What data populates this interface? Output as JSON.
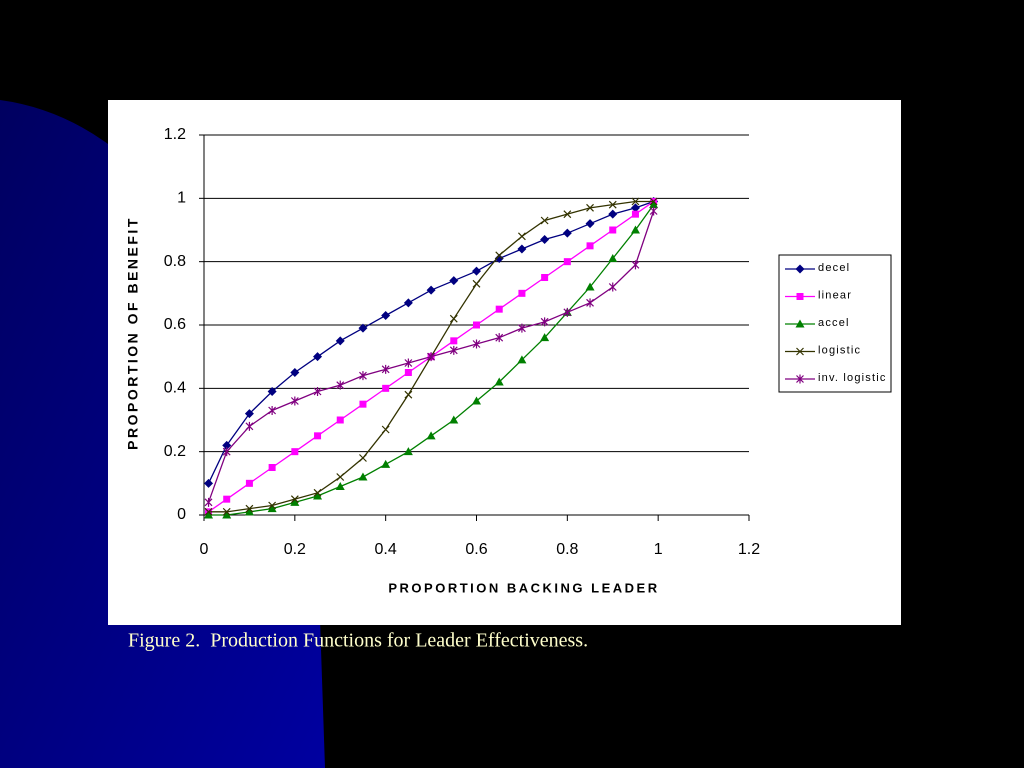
{
  "chart_data": {
    "type": "line",
    "caption": "Figure 2.  Production Functions for Leader Effectiveness.",
    "xlabel": "PROPORTION BACKING LEADER",
    "ylabel": "PROPORTION OF BENEFIT",
    "x": [
      0.01,
      0.05,
      0.1,
      0.15,
      0.2,
      0.25,
      0.3,
      0.35,
      0.4,
      0.45,
      0.5,
      0.55,
      0.6,
      0.65,
      0.7,
      0.75,
      0.8,
      0.85,
      0.9,
      0.95,
      0.99
    ],
    "series": [
      {
        "name": "decel",
        "color": "#000080",
        "marker": "diamond",
        "values": [
          0.1,
          0.22,
          0.32,
          0.39,
          0.45,
          0.5,
          0.55,
          0.59,
          0.63,
          0.67,
          0.71,
          0.74,
          0.77,
          0.81,
          0.84,
          0.87,
          0.89,
          0.92,
          0.95,
          0.97,
          0.99
        ]
      },
      {
        "name": "linear",
        "color": "#ff00ff",
        "marker": "square",
        "values": [
          0.01,
          0.05,
          0.1,
          0.15,
          0.2,
          0.25,
          0.3,
          0.35,
          0.4,
          0.45,
          0.5,
          0.55,
          0.6,
          0.65,
          0.7,
          0.75,
          0.8,
          0.85,
          0.9,
          0.95,
          0.99
        ]
      },
      {
        "name": "accel",
        "color": "#008000",
        "marker": "triangle",
        "values": [
          0,
          0,
          0.01,
          0.02,
          0.04,
          0.06,
          0.09,
          0.12,
          0.16,
          0.2,
          0.25,
          0.3,
          0.36,
          0.42,
          0.49,
          0.56,
          0.64,
          0.72,
          0.81,
          0.9,
          0.98
        ]
      },
      {
        "name": "logistic",
        "color": "#333300",
        "marker": "x",
        "values": [
          0.01,
          0.01,
          0.02,
          0.03,
          0.05,
          0.07,
          0.12,
          0.18,
          0.27,
          0.38,
          0.5,
          0.62,
          0.73,
          0.82,
          0.88,
          0.93,
          0.95,
          0.97,
          0.98,
          0.99,
          0.99
        ]
      },
      {
        "name": "inv. logistic",
        "color": "#800080",
        "marker": "star",
        "values": [
          0.04,
          0.2,
          0.28,
          0.33,
          0.36,
          0.39,
          0.41,
          0.44,
          0.46,
          0.48,
          0.5,
          0.52,
          0.54,
          0.56,
          0.59,
          0.61,
          0.64,
          0.67,
          0.72,
          0.79,
          0.96
        ]
      }
    ],
    "xlim": [
      0,
      1.2
    ],
    "xticks": [
      0,
      0.2,
      0.4,
      0.6,
      0.8,
      1,
      1.2
    ],
    "ylim": [
      0,
      1.2
    ],
    "yticks": [
      0,
      0.2,
      0.4,
      0.6,
      0.8,
      1,
      1.2
    ],
    "grid": true,
    "legend": "right"
  }
}
